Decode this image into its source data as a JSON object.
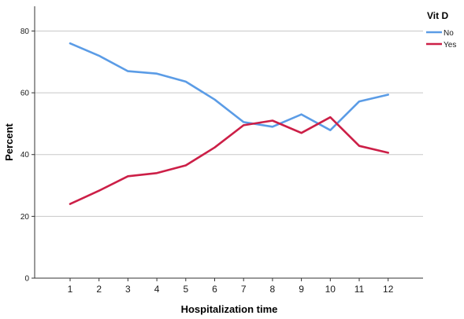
{
  "chart_data": {
    "type": "line",
    "xlabel": "Hospitalization time",
    "ylabel": "Percent",
    "x": [
      1,
      2,
      3,
      4,
      5,
      6,
      7,
      8,
      9,
      10,
      11,
      12
    ],
    "ylim": [
      0,
      88
    ],
    "yticks": [
      0,
      20,
      40,
      60,
      80
    ],
    "grid": "horizontal",
    "legend": {
      "title": "Vit D",
      "placement": "top-right"
    },
    "series": [
      {
        "name": "No",
        "color": "#5b9ce6",
        "values": [
          76.0,
          72.0,
          67.0,
          66.2,
          63.6,
          57.8,
          50.5,
          49.0,
          53.0,
          47.9,
          57.2,
          59.4
        ]
      },
      {
        "name": "Yes",
        "color": "#cc1f47",
        "values": [
          24.0,
          28.3,
          33.0,
          34.0,
          36.5,
          42.3,
          49.5,
          51.0,
          47.0,
          52.1,
          42.8,
          40.6
        ]
      }
    ]
  }
}
